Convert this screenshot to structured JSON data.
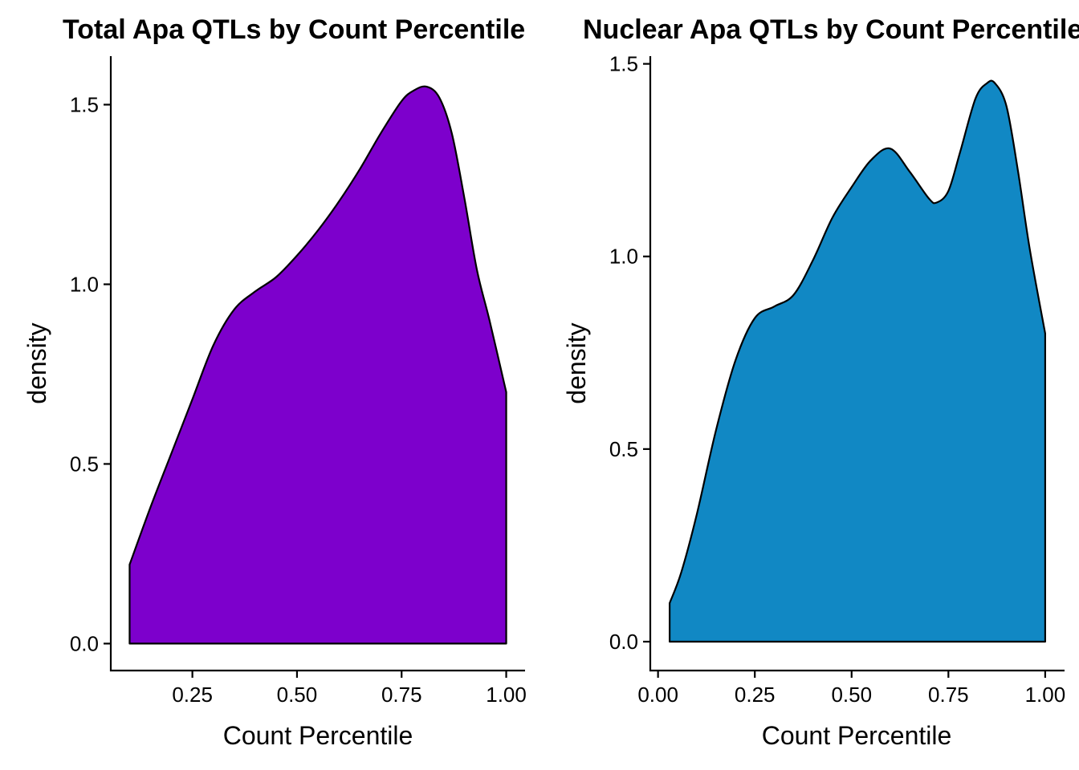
{
  "chart_data": [
    {
      "type": "area",
      "title": "Total Apa QTLs by Count Percentile",
      "xlabel": "Count Percentile",
      "ylabel": "density",
      "xlim": [
        0.055,
        1.045
      ],
      "ylim": [
        -0.075,
        1.635
      ],
      "x_ticks": [
        0.25,
        0.5,
        0.75,
        1.0
      ],
      "x_tick_labels": [
        "0.25",
        "0.50",
        "0.75",
        "1.00"
      ],
      "y_ticks": [
        0.0,
        0.5,
        1.0,
        1.5
      ],
      "y_tick_labels": [
        "0.0",
        "0.5",
        "1.0",
        "1.5"
      ],
      "fill_color": "#7D00CC",
      "outline_color": "#000000",
      "grid": false,
      "legend": "none",
      "series": [
        {
          "x": [
            0.1,
            0.15,
            0.2,
            0.25,
            0.3,
            0.35,
            0.4,
            0.45,
            0.5,
            0.55,
            0.6,
            0.65,
            0.7,
            0.75,
            0.78,
            0.81,
            0.84,
            0.87,
            0.9,
            0.93,
            0.96,
            1.0
          ],
          "y": [
            0.22,
            0.38,
            0.53,
            0.68,
            0.83,
            0.93,
            0.98,
            1.02,
            1.08,
            1.15,
            1.23,
            1.32,
            1.42,
            1.51,
            1.54,
            1.55,
            1.52,
            1.42,
            1.24,
            1.04,
            0.9,
            0.7
          ]
        }
      ]
    },
    {
      "type": "area",
      "title": "Nuclear Apa QTLs by Count Percentile",
      "xlabel": "Count Percentile",
      "ylabel": "density",
      "xlim": [
        -0.02,
        1.05
      ],
      "ylim": [
        -0.075,
        1.52
      ],
      "x_ticks": [
        0.0,
        0.25,
        0.5,
        0.75,
        1.0
      ],
      "x_tick_labels": [
        "0.00",
        "0.25",
        "0.50",
        "0.75",
        "1.00"
      ],
      "y_ticks": [
        0.0,
        0.5,
        1.0,
        1.5
      ],
      "y_tick_labels": [
        "0.0",
        "0.5",
        "1.0",
        "1.5"
      ],
      "fill_color": "#1188C4",
      "outline_color": "#000000",
      "grid": false,
      "legend": "none",
      "series": [
        {
          "x": [
            0.03,
            0.06,
            0.1,
            0.15,
            0.2,
            0.25,
            0.3,
            0.35,
            0.4,
            0.45,
            0.5,
            0.55,
            0.6,
            0.65,
            0.7,
            0.72,
            0.75,
            0.78,
            0.82,
            0.85,
            0.87,
            0.9,
            0.93,
            0.96,
            1.0
          ],
          "y": [
            0.1,
            0.18,
            0.33,
            0.55,
            0.73,
            0.84,
            0.87,
            0.9,
            0.99,
            1.1,
            1.18,
            1.25,
            1.28,
            1.22,
            1.15,
            1.14,
            1.17,
            1.27,
            1.41,
            1.45,
            1.45,
            1.39,
            1.22,
            1.02,
            0.8
          ]
        }
      ]
    }
  ]
}
